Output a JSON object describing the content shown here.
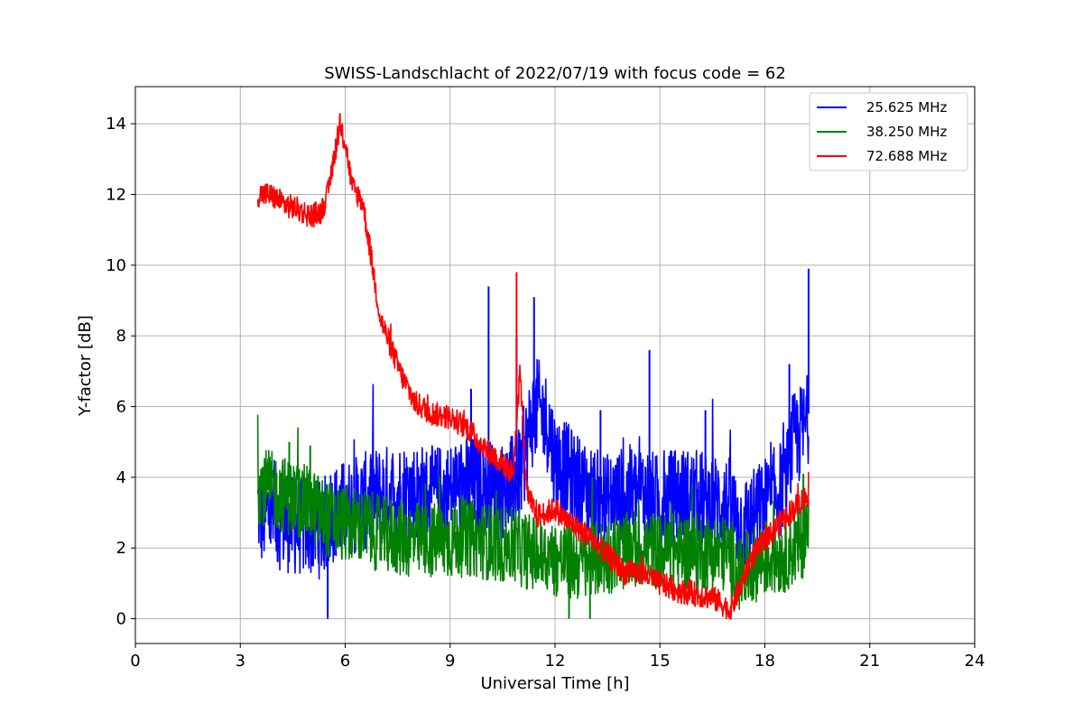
{
  "chart_data": {
    "type": "line",
    "title": "SWISS-Landschlacht of 2022/07/19 with focus code = 62",
    "xlabel": "Universal Time [h]",
    "ylabel": "Y-factor [dB]",
    "xlim": [
      0,
      24
    ],
    "ylim": [
      -0.7,
      15.05
    ],
    "xticks": [
      0,
      3,
      6,
      9,
      12,
      15,
      18,
      21,
      24
    ],
    "yticks": [
      0,
      2,
      4,
      6,
      8,
      10,
      12,
      14
    ],
    "grid": true,
    "legend_position": "top-right",
    "series": [
      {
        "name": "25.625 MHz",
        "color": "#0000ff",
        "x": [
          3.5,
          3.6,
          3.8,
          4.0,
          4.3,
          4.6,
          5.0,
          5.3,
          5.5,
          5.7,
          6.0,
          6.5,
          7.0,
          7.5,
          8.0,
          8.5,
          9.0,
          9.5,
          10.0,
          10.5,
          11.0,
          11.3,
          11.5,
          11.8,
          12.0,
          12.5,
          13.0,
          13.5,
          14.0,
          14.5,
          15.0,
          15.5,
          16.0,
          16.5,
          17.0,
          17.3,
          17.6,
          18.0,
          18.3,
          18.6,
          18.8,
          19.0,
          19.2,
          19.25
        ],
        "y": [
          3.2,
          2.8,
          3.0,
          2.8,
          2.7,
          2.6,
          2.6,
          2.5,
          2.8,
          3.0,
          3.1,
          3.3,
          3.5,
          3.6,
          3.6,
          3.5,
          3.6,
          3.8,
          3.7,
          3.6,
          4.0,
          5.5,
          6.0,
          5.5,
          4.5,
          4.0,
          3.5,
          3.3,
          3.5,
          3.6,
          3.2,
          3.5,
          3.4,
          3.3,
          3.2,
          2.6,
          2.8,
          3.2,
          3.5,
          3.8,
          5.0,
          5.2,
          5.5,
          5.8
        ],
        "spikes": [
          [
            5.5,
            0.0
          ],
          [
            9.6,
            6.5
          ],
          [
            10.1,
            9.4
          ],
          [
            10.9,
            8.0
          ],
          [
            11.4,
            9.1
          ],
          [
            13.3,
            5.9
          ],
          [
            14.7,
            7.6
          ],
          [
            16.3,
            5.9
          ],
          [
            18.7,
            7.2
          ],
          [
            19.25,
            9.9
          ]
        ]
      },
      {
        "name": "38.250 MHz",
        "color": "#008000",
        "x": [
          3.5,
          4.0,
          4.5,
          5.0,
          5.5,
          6.0,
          6.5,
          7.0,
          7.5,
          8.0,
          8.5,
          9.0,
          9.5,
          10.0,
          10.5,
          11.0,
          11.5,
          12.0,
          12.5,
          13.0,
          13.5,
          14.0,
          14.5,
          15.0,
          15.5,
          16.0,
          16.5,
          17.0,
          17.3,
          17.6,
          18.0,
          18.5,
          19.0,
          19.25
        ],
        "y": [
          3.8,
          3.6,
          3.4,
          3.2,
          2.8,
          2.7,
          2.6,
          2.4,
          2.3,
          2.2,
          2.2,
          2.2,
          2.3,
          2.2,
          2.1,
          2.0,
          1.8,
          1.7,
          1.6,
          1.6,
          1.8,
          1.9,
          2.0,
          1.9,
          1.9,
          1.9,
          1.9,
          1.8,
          1.2,
          1.5,
          1.7,
          1.8,
          2.1,
          2.5
        ],
        "spikes": [
          [
            4.4,
            5.0
          ],
          [
            5.0,
            4.9
          ],
          [
            12.4,
            0.0
          ],
          [
            13.0,
            0.0
          ],
          [
            19.1,
            4.1
          ]
        ]
      },
      {
        "name": "72.688 MHz",
        "color": "#ff0000",
        "x": [
          3.5,
          3.8,
          4.0,
          4.3,
          4.6,
          5.0,
          5.3,
          5.5,
          5.7,
          5.85,
          6.0,
          6.2,
          6.5,
          6.7,
          7.0,
          7.3,
          7.6,
          8.0,
          8.5,
          9.0,
          9.5,
          10.0,
          10.5,
          10.8,
          11.0,
          11.2,
          11.5,
          12.0,
          12.3,
          12.6,
          13.0,
          13.5,
          14.0,
          14.5,
          15.0,
          15.5,
          16.0,
          16.5,
          16.8,
          17.0,
          17.3,
          17.6,
          18.0,
          18.5,
          19.0,
          19.25
        ],
        "y": [
          12.0,
          12.0,
          11.9,
          11.7,
          11.6,
          11.4,
          11.5,
          12.0,
          13.2,
          13.8,
          13.5,
          12.2,
          11.8,
          10.5,
          8.5,
          7.7,
          6.9,
          6.1,
          5.8,
          5.7,
          5.4,
          4.8,
          4.4,
          4.1,
          7.0,
          3.5,
          2.9,
          3.1,
          2.8,
          2.6,
          2.3,
          1.8,
          1.3,
          1.3,
          1.0,
          0.8,
          0.7,
          0.6,
          0.4,
          0.2,
          0.9,
          1.7,
          2.2,
          2.8,
          3.3,
          3.5
        ],
        "spikes": [
          [
            5.85,
            14.3
          ],
          [
            10.9,
            9.8
          ]
        ]
      }
    ]
  }
}
